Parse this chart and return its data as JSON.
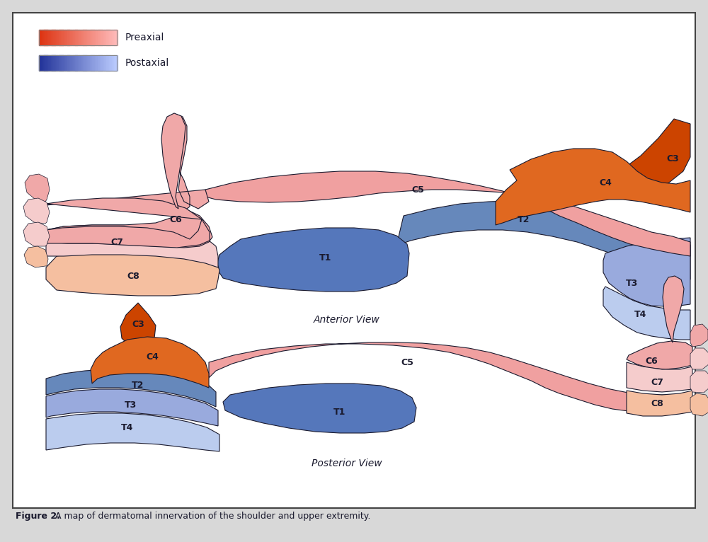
{
  "caption_bold": "Figure 2.",
  "caption_rest": " A map of dermatomal innervation of the shoulder and upper extremity.",
  "legend_preaxial": "Preaxial",
  "legend_postaxial": "Postaxial",
  "colors": {
    "C3_orange": "#CC4400",
    "C4_orange": "#E06820",
    "C5_pink": "#F0A0A0",
    "C6_pink": "#F0A8A8",
    "C7_light_pink": "#F5CCCC",
    "C8_peach": "#F5BFA0",
    "T1_blue_med": "#5577BB",
    "T2_blue": "#6688BB",
    "T3_blue_light": "#99AADD",
    "T4_blue_very_light": "#BBCCEE",
    "outline": "#1a1a2e",
    "background": "#ffffff",
    "border": "#444444",
    "text_dark": "#1a1a2e",
    "preaxial_left": "#DD3311",
    "preaxial_right": "#FFBBBB",
    "postaxial_left": "#223399",
    "postaxial_right": "#BBCCFF"
  },
  "anterior_label": "Anterior View",
  "posterior_label": "Posterior View",
  "font_sizes": {
    "label": 9,
    "view_label": 10,
    "caption_bold": 9,
    "caption": 9,
    "legend": 10
  }
}
